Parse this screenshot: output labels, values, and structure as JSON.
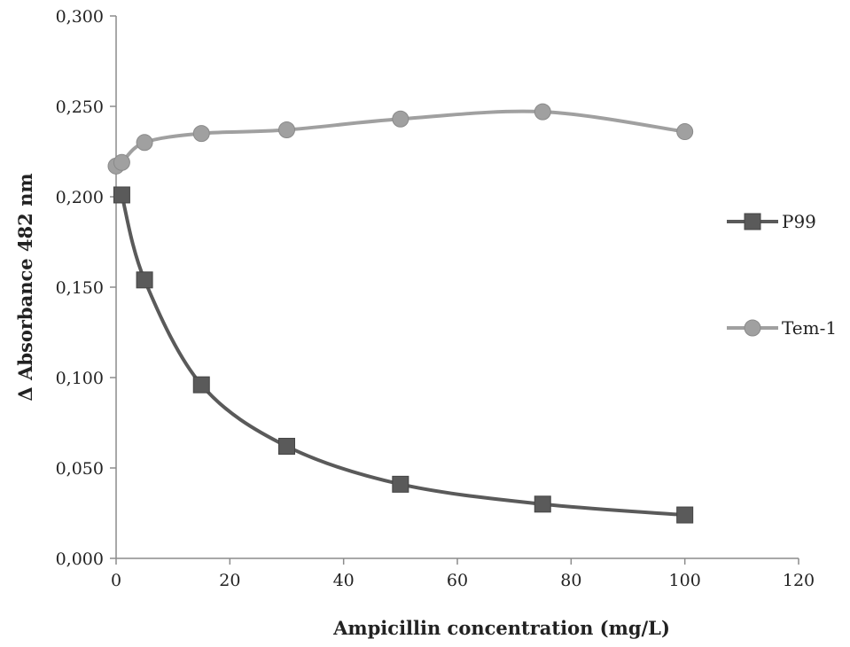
{
  "chart_data": {
    "type": "line",
    "title": "",
    "xlabel": "Ampicillin concentration (mg/L)",
    "ylabel": "Δ Absorbance 482 nm",
    "xlim": [
      0,
      120
    ],
    "ylim": [
      0,
      0.3
    ],
    "x_ticks": [
      0,
      20,
      40,
      60,
      80,
      100,
      120
    ],
    "x_tick_labels": [
      "0",
      "20",
      "40",
      "60",
      "80",
      "100",
      "120"
    ],
    "y_ticks": [
      0,
      0.05,
      0.1,
      0.15,
      0.2,
      0.25,
      0.3
    ],
    "y_tick_labels": [
      "0,000",
      "0,050",
      "0,100",
      "0,150",
      "0,200",
      "0,250",
      "0,300"
    ],
    "grid": false,
    "legend_position": "right",
    "smooth": true,
    "series": [
      {
        "name": "P99",
        "marker": "square",
        "color": "#5a5a5a",
        "x": [
          1,
          5,
          15,
          30,
          50,
          75,
          100
        ],
        "y": [
          0.201,
          0.154,
          0.096,
          0.062,
          0.041,
          0.03,
          0.024
        ]
      },
      {
        "name": "Tem-1",
        "marker": "circle",
        "color": "#a0a0a0",
        "x": [
          0,
          1,
          5,
          15,
          30,
          50,
          75,
          100
        ],
        "y": [
          0.217,
          0.219,
          0.23,
          0.235,
          0.237,
          0.243,
          0.247,
          0.236
        ]
      }
    ]
  }
}
